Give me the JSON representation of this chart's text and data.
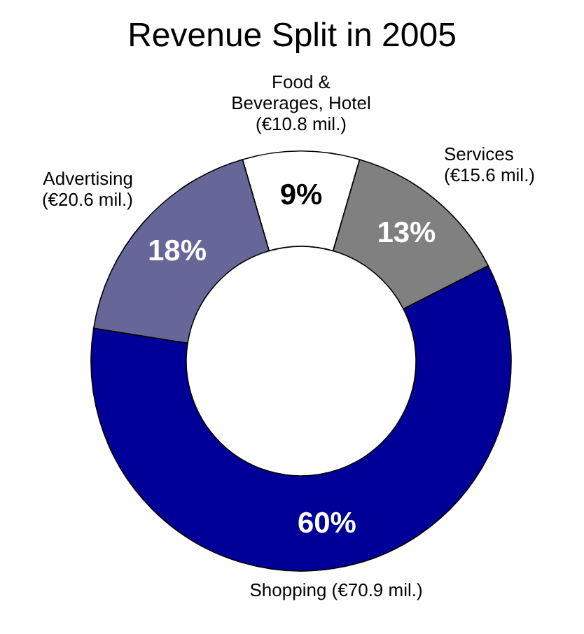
{
  "chart_data": {
    "type": "donut",
    "title": "Revenue Split in 2005",
    "categories": [
      "Food &\nBeverages, Hotel\n(€10.8 mil.)",
      "Services\n(€15.6 mil.)",
      "Shopping (€70.9 mil.)",
      "Advertising\n(€20.6 mil.)"
    ],
    "values": [
      9,
      13,
      60,
      18
    ],
    "colors": [
      "#ffffff",
      "#808080",
      "#000099",
      "#666699"
    ],
    "value_labels": [
      "9%",
      "13%",
      "60%",
      "18%"
    ],
    "legend": false
  }
}
